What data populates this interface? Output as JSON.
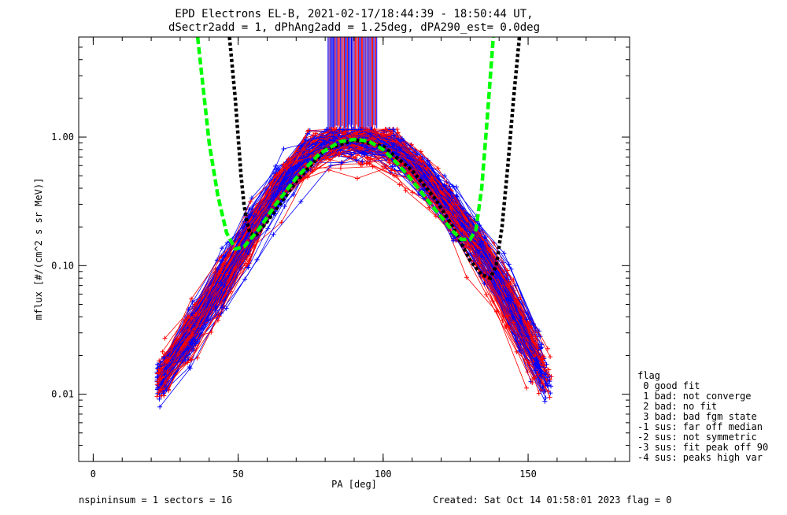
{
  "chart_data": {
    "type": "line",
    "title_line1": "EPD Electrons EL-B, 2021-02-17/18:44:39 - 18:50:44 UT,",
    "title_line2": "dSectr2add = 1, dPhAng2add = 1.25deg, dPA290_est=   0.0deg",
    "xlabel": "PA [deg]",
    "ylabel": "mflux [#/(cm^2 s sr MeV)]",
    "xlim": [
      -5,
      185
    ],
    "ylim": [
      0.003,
      6
    ],
    "yscale": "log",
    "x_major_ticks": [
      0,
      50,
      100,
      150
    ],
    "x_tick_labels": [
      "0",
      "50",
      "100",
      "150"
    ],
    "x_minor_step": 10,
    "y_major_ticks": [
      0.01,
      0.1,
      1.0
    ],
    "y_tick_labels": [
      "0.01",
      "0.10",
      "1.00"
    ],
    "grid": false,
    "colors": {
      "red_series": "#ff0000",
      "blue_series": "#0000ff",
      "green_fit": "#00ff00",
      "black_fit": "#000000",
      "spike": "#7a2fb0"
    },
    "median_profile": {
      "x": [
        23,
        30,
        40,
        50,
        60,
        70,
        80,
        90,
        100,
        110,
        120,
        130,
        140,
        150,
        157
      ],
      "y": [
        0.012,
        0.022,
        0.05,
        0.12,
        0.3,
        0.6,
        0.9,
        0.95,
        0.9,
        0.62,
        0.35,
        0.17,
        0.075,
        0.025,
        0.012
      ]
    },
    "green_dashed_curve": {
      "x": [
        36,
        40,
        43,
        46,
        49,
        52,
        57,
        63,
        70,
        78,
        85,
        90,
        95,
        100,
        105,
        110,
        115,
        120,
        124,
        127,
        130,
        132,
        134,
        136,
        138
      ],
      "y": [
        6,
        0.9,
        0.35,
        0.18,
        0.135,
        0.14,
        0.19,
        0.3,
        0.48,
        0.74,
        0.92,
        0.96,
        0.93,
        0.8,
        0.62,
        0.46,
        0.33,
        0.24,
        0.185,
        0.16,
        0.16,
        0.19,
        0.4,
        1.5,
        6
      ]
    },
    "black_dotted_curve": {
      "x": [
        47,
        49,
        50,
        51,
        52,
        53,
        54,
        56,
        60,
        70,
        80,
        90,
        100,
        110,
        118,
        124,
        130,
        134,
        137,
        139,
        141,
        143,
        145,
        147
      ],
      "y": [
        6,
        2.0,
        1.0,
        0.5,
        0.3,
        0.22,
        0.18,
        0.17,
        0.22,
        0.45,
        0.8,
        0.95,
        0.85,
        0.55,
        0.33,
        0.2,
        0.11,
        0.085,
        0.08,
        0.1,
        0.2,
        0.6,
        2.0,
        6
      ]
    },
    "saturated_band": {
      "x_min": 81,
      "x_max": 98
    },
    "legend": {
      "title": "flag",
      "items": [
        " 0 good fit",
        " 1 bad: not converge",
        " 2 bad: no fit",
        " 3 bad: bad fgm state",
        "-1 sus: far off median",
        "-2 sus: not symmetric",
        "-3 sus: fit peak off 90",
        "-4 sus: peaks high var"
      ]
    },
    "footer": {
      "left": "nspininsum =  1  sectors = 16",
      "right": "Created: Sat Oct 14 01:58:01 2023   flag = 0"
    }
  }
}
